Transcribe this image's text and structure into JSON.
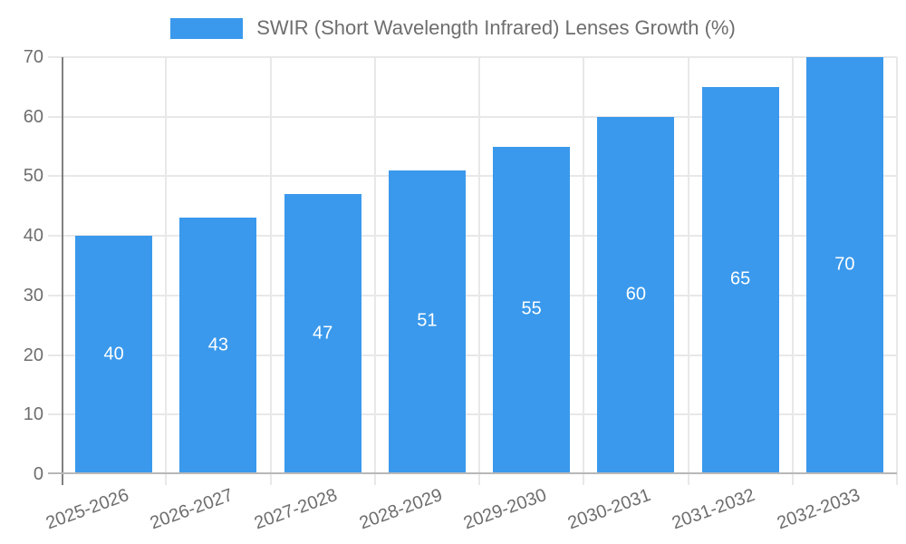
{
  "chart_data": {
    "type": "bar",
    "title": "SWIR (Short Wavelength Infrared) Lenses Growth (%)",
    "legend_entries": [
      "SWIR (Short Wavelength Infrared) Lenses Growth (%)"
    ],
    "legend_position": "top",
    "categories": [
      "2025-2026",
      "2026-2027",
      "2027-2028",
      "2028-2029",
      "2029-2030",
      "2030-2031",
      "2031-2032",
      "2032-2033"
    ],
    "values": [
      40,
      43,
      47,
      51,
      55,
      60,
      65,
      70
    ],
    "value_labels": [
      "40",
      "43",
      "47",
      "51",
      "55",
      "60",
      "65",
      "70"
    ],
    "xlabel": "",
    "ylabel": "",
    "ylim": [
      0,
      70
    ],
    "y_ticks": [
      0,
      10,
      20,
      30,
      40,
      50,
      60,
      70
    ],
    "grid": true,
    "colors": {
      "bar": "#3a99ec",
      "value_label": "#ffffff",
      "text": "#6e6e6e",
      "grid": "#e8e8e8",
      "y_axis_line": "#808080",
      "x_axis_line": "#b8b8b8",
      "background": "#ffffff"
    }
  }
}
